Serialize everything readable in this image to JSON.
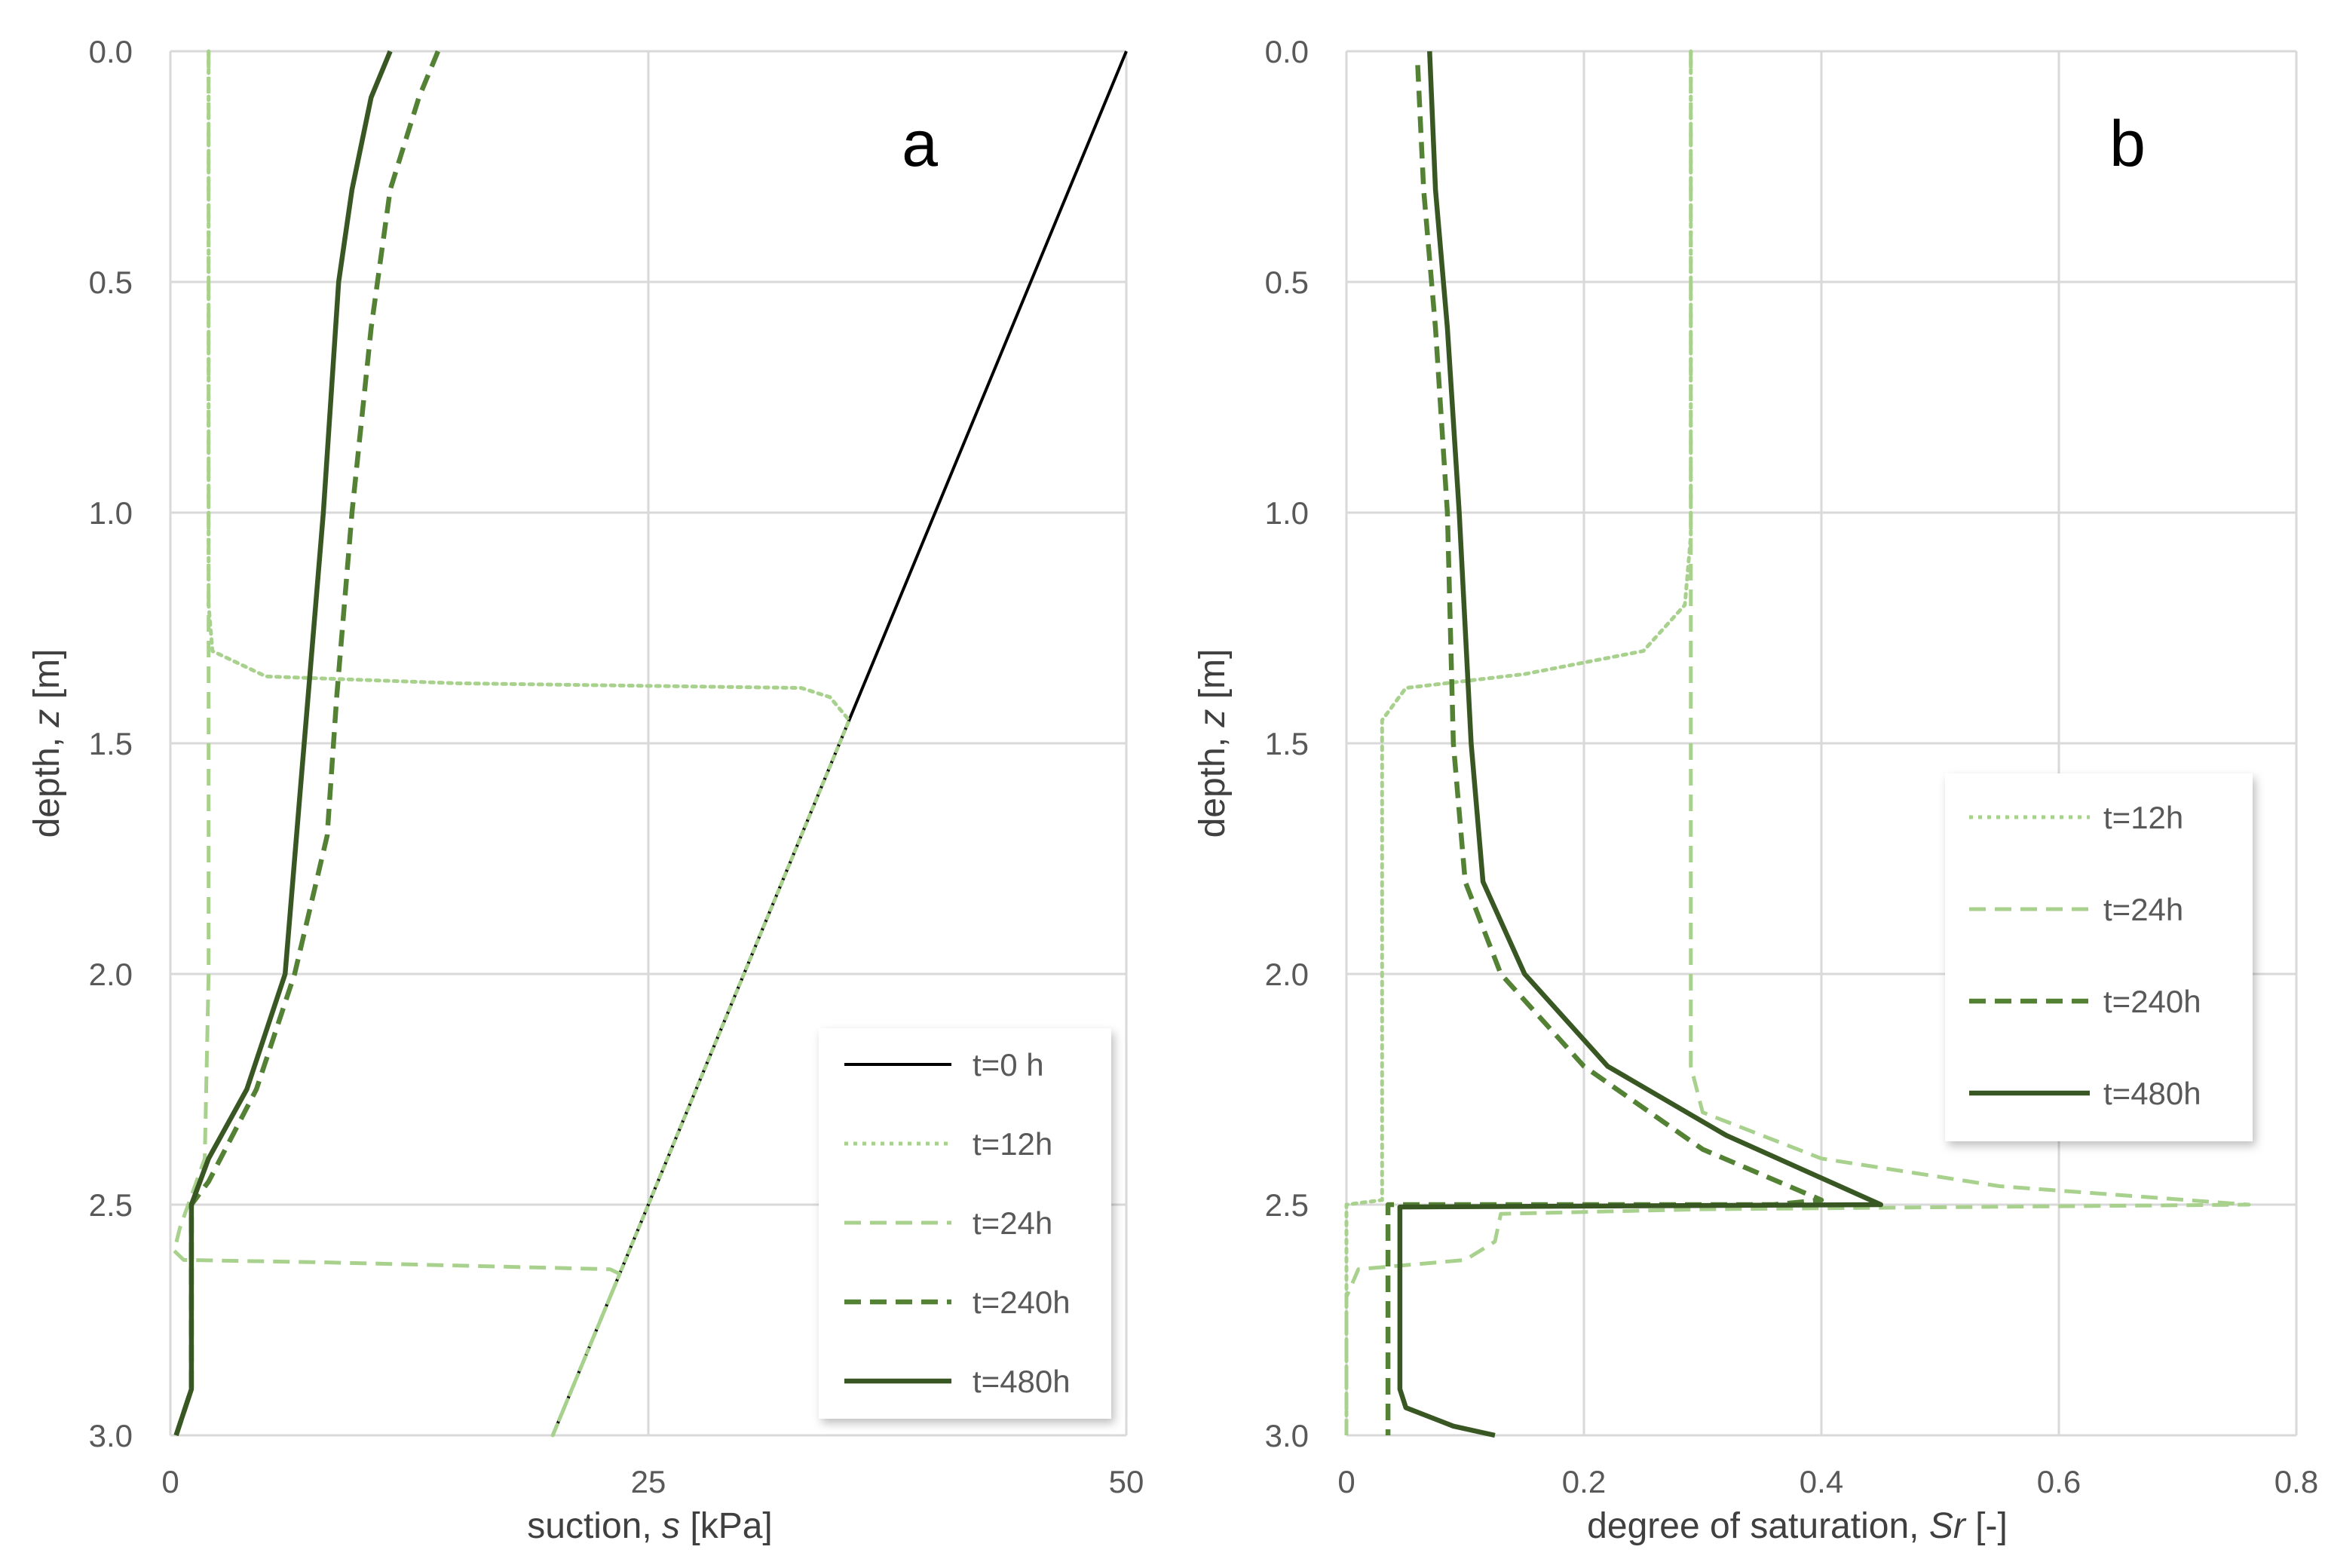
{
  "figure": {
    "colors": {
      "grid": "#d9d9d9",
      "t0": "#000000",
      "light": "#a9d18e",
      "dark": "#548235",
      "darker": "#385723"
    }
  },
  "chart_data": [
    {
      "type": "line",
      "panel_label": "a",
      "xlabel": "suction, ",
      "xlabel_italic": "s",
      "xlabel_unit": " [kPa]",
      "ylabel": "depth, ",
      "ylabel_italic": "z",
      "ylabel_unit": " [m]",
      "xlim": [
        0,
        50
      ],
      "ylim": [
        0,
        3.0
      ],
      "y_inverted": true,
      "x_ticks": [
        0,
        25,
        50
      ],
      "x_tick_labels": [
        "0",
        "25",
        "50"
      ],
      "y_ticks": [
        0,
        0.5,
        1.0,
        1.5,
        2.0,
        2.5,
        3.0
      ],
      "y_tick_labels": [
        "0.0",
        "0.5",
        "1.0",
        "1.5",
        "2.0",
        "2.5",
        "3.0"
      ],
      "legend_position": "bottom-right",
      "series": [
        {
          "name": "t=0 h",
          "style": "solid",
          "color": "#000000",
          "points": [
            [
              50,
              0
            ],
            [
              20,
              3.0
            ]
          ]
        },
        {
          "name": "t=12h",
          "style": "dotted",
          "color": "#a9d18e",
          "points": [
            [
              2,
              0
            ],
            [
              2,
              1.2
            ],
            [
              2.2,
              1.3
            ],
            [
              5,
              1.355
            ],
            [
              15,
              1.37
            ],
            [
              33,
              1.38
            ],
            [
              34.5,
              1.4
            ],
            [
              35.5,
              1.45
            ],
            [
              25,
              2.5
            ],
            [
              23.5,
              2.65
            ],
            [
              20,
              3.0
            ]
          ]
        },
        {
          "name": "t=24h",
          "style": "dashed",
          "color": "#a9d18e",
          "points": [
            [
              2,
              0
            ],
            [
              2,
              1.0
            ],
            [
              2,
              2.0
            ],
            [
              1.8,
              2.4
            ],
            [
              0.5,
              2.55
            ],
            [
              0.2,
              2.6
            ],
            [
              0.7,
              2.62
            ],
            [
              8,
              2.625
            ],
            [
              23,
              2.64
            ],
            [
              23.5,
              2.65
            ],
            [
              20,
              3.0
            ]
          ]
        },
        {
          "name": "t=240h",
          "style": "dashed",
          "color": "#548235",
          "points": [
            [
              14,
              0
            ],
            [
              13,
              0.1
            ],
            [
              11.5,
              0.3
            ],
            [
              10.5,
              0.6
            ],
            [
              9.5,
              1.0
            ],
            [
              8.7,
              1.4
            ],
            [
              8.2,
              1.7
            ],
            [
              6.5,
              2.0
            ],
            [
              4.5,
              2.25
            ],
            [
              2,
              2.45
            ],
            [
              1.1,
              2.5
            ],
            [
              1.1,
              2.6
            ],
            [
              1.1,
              2.9
            ],
            [
              0.3,
              3.0
            ]
          ]
        },
        {
          "name": "t=480h",
          "style": "solid",
          "color": "#385723",
          "points": [
            [
              11.5,
              0
            ],
            [
              10.5,
              0.1
            ],
            [
              9.5,
              0.3
            ],
            [
              8.8,
              0.5
            ],
            [
              8.0,
              1.0
            ],
            [
              7.2,
              1.4
            ],
            [
              6.8,
              1.6
            ],
            [
              6.0,
              2.0
            ],
            [
              4.0,
              2.25
            ],
            [
              2.0,
              2.4
            ],
            [
              1.1,
              2.5
            ],
            [
              1.1,
              2.6
            ],
            [
              1.1,
              2.9
            ],
            [
              0.3,
              3.0
            ]
          ]
        }
      ]
    },
    {
      "type": "line",
      "panel_label": "b",
      "xlabel": "degree of saturation, ",
      "xlabel_italic": "Sr",
      "xlabel_unit": " [-]",
      "ylabel": "depth, ",
      "ylabel_italic": "z",
      "ylabel_unit": " [m]",
      "xlim": [
        0,
        0.8
      ],
      "ylim": [
        0,
        3.0
      ],
      "y_inverted": true,
      "x_ticks": [
        0,
        0.2,
        0.4,
        0.6,
        0.8
      ],
      "x_tick_labels": [
        "0",
        "0.2",
        "0.4",
        "0.6",
        "0.8"
      ],
      "y_ticks": [
        0,
        0.5,
        1.0,
        1.5,
        2.0,
        2.5,
        3.0
      ],
      "y_tick_labels": [
        "0.0",
        "0.5",
        "1.0",
        "1.5",
        "2.0",
        "2.5",
        "3.0"
      ],
      "legend_position": "right",
      "series": [
        {
          "name": "t=12h",
          "style": "dotted",
          "color": "#a9d18e",
          "points": [
            [
              0.29,
              0
            ],
            [
              0.29,
              1.05
            ],
            [
              0.285,
              1.2
            ],
            [
              0.25,
              1.3
            ],
            [
              0.15,
              1.35
            ],
            [
              0.05,
              1.38
            ],
            [
              0.03,
              1.45
            ],
            [
              0.03,
              2.49
            ],
            [
              0.0,
              2.5
            ],
            [
              0.0,
              3.0
            ]
          ]
        },
        {
          "name": "t=24h",
          "style": "dashed",
          "color": "#a9d18e",
          "points": [
            [
              0.29,
              0
            ],
            [
              0.29,
              2.2
            ],
            [
              0.3,
              2.3
            ],
            [
              0.4,
              2.4
            ],
            [
              0.55,
              2.46
            ],
            [
              0.76,
              2.5
            ],
            [
              0.3,
              2.51
            ],
            [
              0.13,
              2.52
            ],
            [
              0.125,
              2.58
            ],
            [
              0.1,
              2.62
            ],
            [
              0.01,
              2.64
            ],
            [
              0.0,
              2.7
            ],
            [
              0.0,
              3.0
            ]
          ]
        },
        {
          "name": "t=240h",
          "style": "dashed",
          "color": "#548235",
          "points": [
            [
              0.06,
              0.03
            ],
            [
              0.065,
              0.3
            ],
            [
              0.075,
              0.6
            ],
            [
              0.085,
              1.0
            ],
            [
              0.09,
              1.5
            ],
            [
              0.1,
              1.8
            ],
            [
              0.13,
              2.0
            ],
            [
              0.2,
              2.2
            ],
            [
              0.3,
              2.38
            ],
            [
              0.4,
              2.49
            ],
            [
              0.36,
              2.5
            ],
            [
              0.035,
              2.5
            ],
            [
              0.035,
              3.0
            ]
          ]
        },
        {
          "name": "t=480h",
          "style": "solid",
          "color": "#385723",
          "points": [
            [
              0.07,
              0
            ],
            [
              0.075,
              0.3
            ],
            [
              0.085,
              0.6
            ],
            [
              0.095,
              1.0
            ],
            [
              0.105,
              1.5
            ],
            [
              0.115,
              1.8
            ],
            [
              0.15,
              2.0
            ],
            [
              0.22,
              2.2
            ],
            [
              0.32,
              2.35
            ],
            [
              0.45,
              2.5
            ],
            [
              0.045,
              2.505
            ],
            [
              0.045,
              2.9
            ],
            [
              0.05,
              2.94
            ],
            [
              0.09,
              2.98
            ],
            [
              0.125,
              3.0
            ]
          ]
        }
      ]
    }
  ]
}
